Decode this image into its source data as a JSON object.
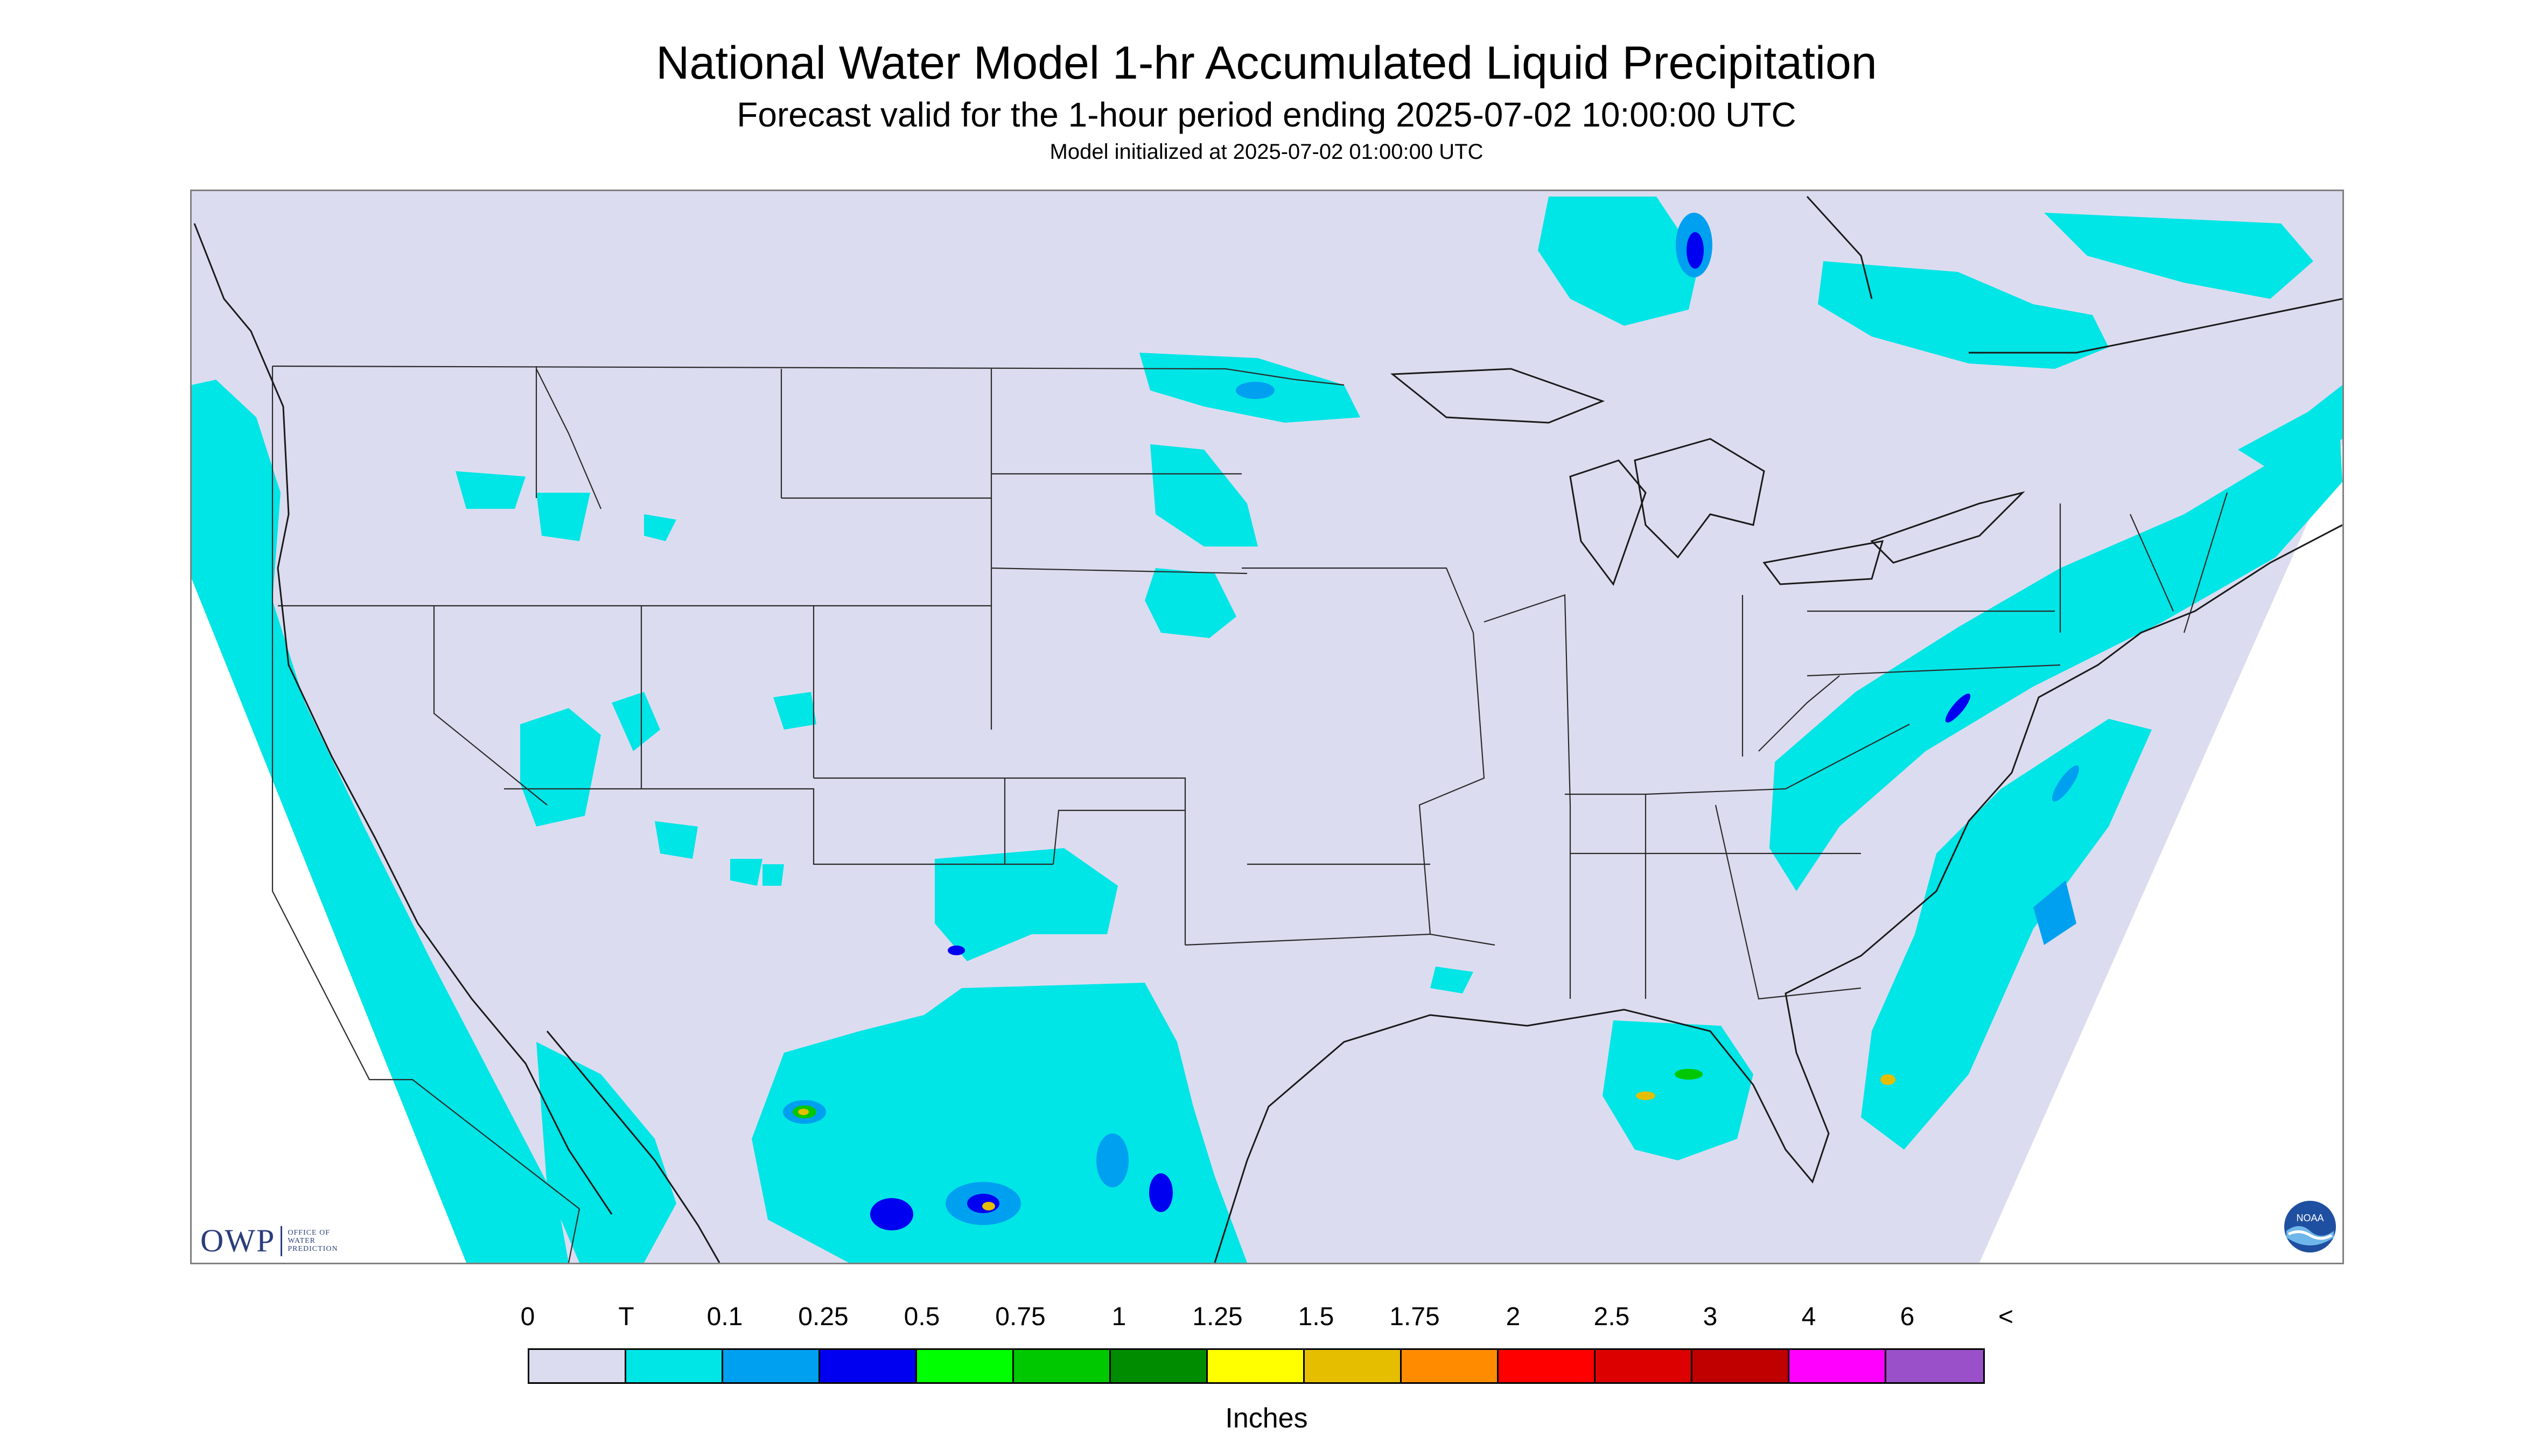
{
  "header": {
    "title": "National Water Model 1-hr Accumulated Liquid Precipitation",
    "subtitle": "Forecast valid for the 1-hour period ending 2025-07-02 10:00:00 UTC",
    "initialized": "Model initialized at 2025-07-02 01:00:00 UTC"
  },
  "logos": {
    "owp_abbr": "OWP",
    "owp_name_lines": [
      "OFFICE OF",
      "WATER",
      "PREDICTION"
    ],
    "noaa_text": "NOAA"
  },
  "legend": {
    "labels": [
      "0",
      "T",
      "0.1",
      "0.25",
      "0.5",
      "0.75",
      "1",
      "1.25",
      "1.5",
      "1.75",
      "2",
      "2.5",
      "3",
      "4",
      "6",
      "<"
    ],
    "colors": [
      "#dcdcf0",
      "#00e5e5",
      "#00a0f0",
      "#0000f0",
      "#00ff00",
      "#00c800",
      "#008c00",
      "#ffff00",
      "#e6be00",
      "#ff8c00",
      "#ff0000",
      "#dc0000",
      "#c00000",
      "#ff00ff",
      "#9a50c8"
    ],
    "units": "Inches"
  },
  "map_colors": {
    "land": "#dcdcf0",
    "outside": "#ffffff",
    "precip_trace": "#00e5e5",
    "precip_light": "#00a0f0",
    "precip_moderate": "#0000f0",
    "precip_green": "#00c800",
    "precip_yellow": "#e6be00",
    "borders": "#2b2b2b"
  }
}
